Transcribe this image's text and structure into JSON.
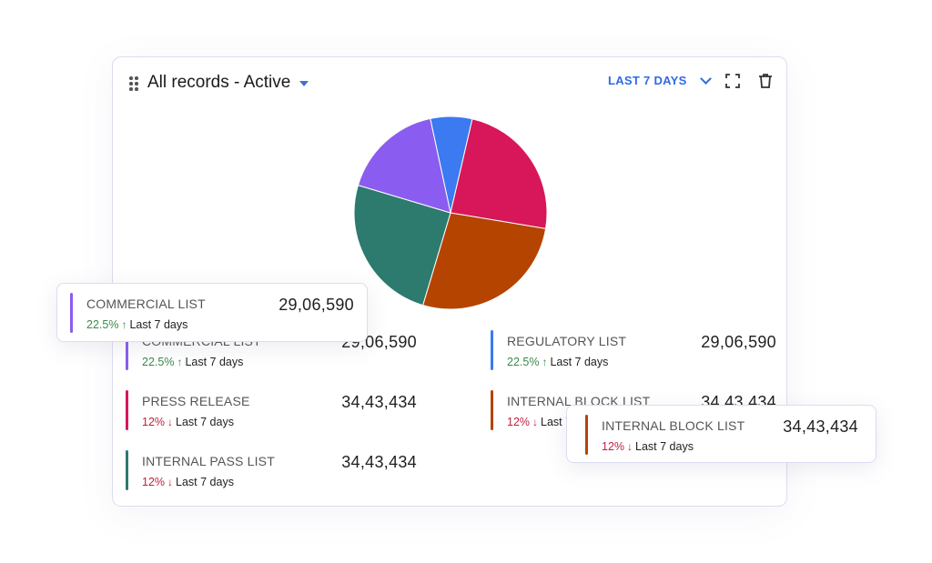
{
  "widget": {
    "title": "All records - Active",
    "range_label": "LAST 7 DAYS",
    "icons": {
      "drag": "drag-handle-icon",
      "expand": "expand-icon",
      "delete": "trash-icon",
      "range_chevron": "chevron-down-icon",
      "title_caret": "caret-down-icon"
    }
  },
  "chart_data": {
    "type": "pie",
    "slices": [
      {
        "category": "Regulatory List",
        "value": 7,
        "color": "#3b7af0"
      },
      {
        "category": "Press Release",
        "value": 24,
        "color": "#d7175a"
      },
      {
        "category": "Internal Block List",
        "value": 27,
        "color": "#b54400"
      },
      {
        "category": "Internal Pass List",
        "value": 25,
        "color": "#2d7a6f"
      },
      {
        "category": "Commercial List",
        "value": 17,
        "color": "#8b5cf0"
      }
    ]
  },
  "legend": [
    {
      "name": "COMMERCIAL LIST",
      "value": "29,06,590",
      "pct": "22.5%",
      "trend": "up",
      "period": "Last 7 days",
      "color": "#8b5cf0"
    },
    {
      "name": "REGULATORY LIST",
      "value": "29,06,590",
      "pct": "22.5%",
      "trend": "up",
      "period": "Last 7 days",
      "color": "#3b7af0"
    },
    {
      "name": "PRESS RELEASE",
      "value": "34,43,434",
      "pct": "12%",
      "trend": "down",
      "period": "Last 7 days",
      "color": "#d7175a"
    },
    {
      "name": "INTERNAL BLOCK LIST",
      "value": "34,43,434",
      "pct": "12%",
      "trend": "down",
      "period": "Last 7 days",
      "color": "#b54400"
    },
    {
      "name": "INTERNAL PASS LIST",
      "value": "34,43,434",
      "pct": "12%",
      "trend": "down",
      "period": "Last 7 days",
      "color": "#2d7a6f"
    }
  ],
  "tooltips": {
    "commercial": {
      "name": "COMMERCIAL LIST",
      "value": "29,06,590",
      "pct": "22.5%",
      "trend": "up",
      "period": "Last 7 days",
      "color": "#8b5cf0"
    },
    "internal_block": {
      "name": "INTERNAL BLOCK LIST",
      "value": "34,43,434",
      "pct": "12%",
      "trend": "down",
      "period": "Last 7 days",
      "color": "#b54400"
    }
  }
}
